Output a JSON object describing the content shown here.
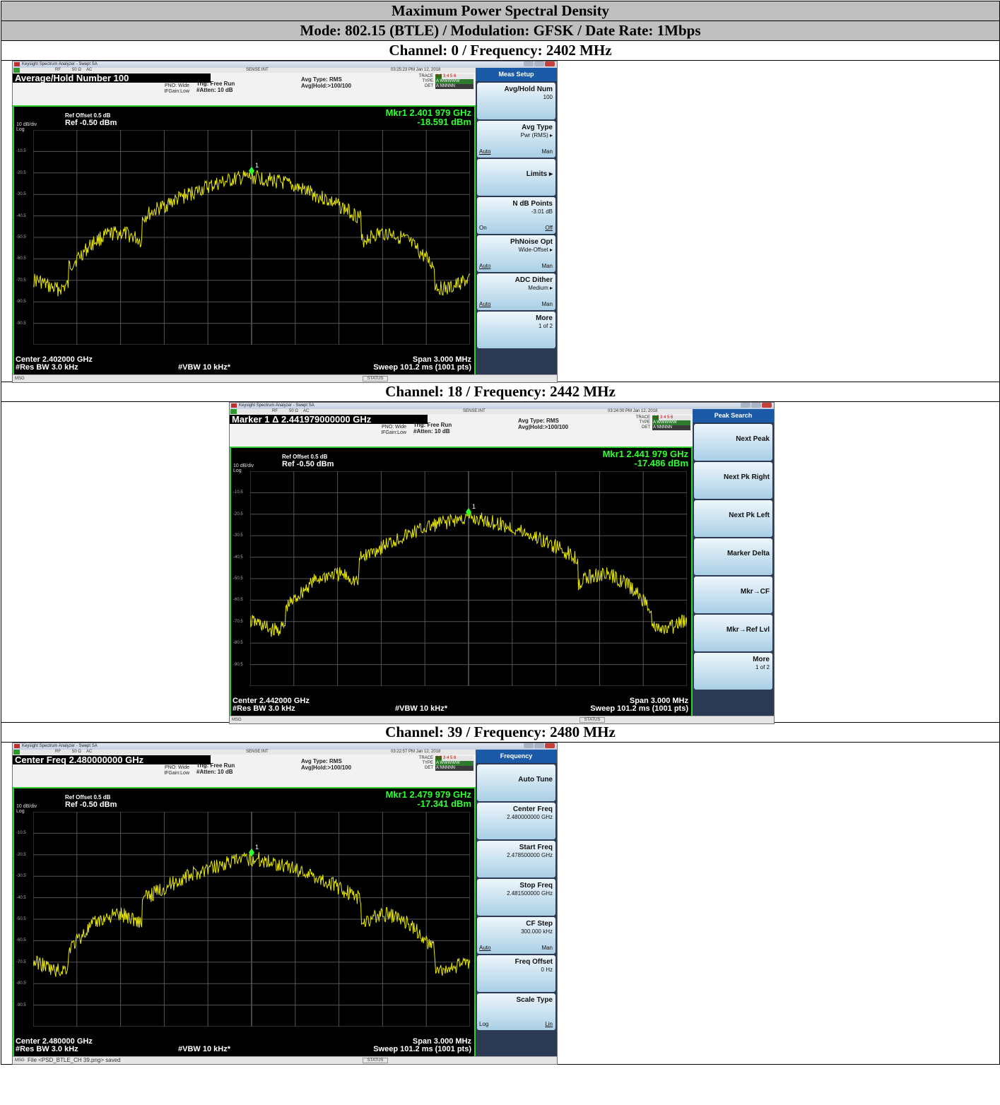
{
  "table": {
    "title": "Maximum Power Spectral Density",
    "mode": "Mode: 802.15 (BTLE) / Modulation: GFSK / Date Rate: 1Mbps"
  },
  "common": {
    "app_title": "Keysight Spectrum Analyzer - Swept SA",
    "rf": "RF",
    "ohm": "50 Ω",
    "ac": "AC",
    "sense": "SENSE:INT",
    "pno": "PNO: Wide",
    "ifgain": "IFGain:Low",
    "trig": "Trig: Free Run",
    "atten": "#Atten: 10 dB",
    "avg_type": "Avg Type: RMS",
    "avg_hold": "Avg|Hold:>100/100",
    "trace_lbl": "TRACE",
    "type_lbl": "TYPE",
    "det_lbl": "DET",
    "trace_num": "1 2 3 4 5 6",
    "type_val": "A WWWWW",
    "det_val": "A NNNNN",
    "ref_offset": "Ref Offset 0.5 dB",
    "ref_level": "Ref -0.50 dBm",
    "db_div": "10 dB/div",
    "log": "Log",
    "y_ticks": [
      "-10.5",
      "-20.5",
      "-30.5",
      "-40.5",
      "-50.5",
      "-60.5",
      "-70.5",
      "-80.5",
      "-90.5"
    ],
    "res_bw": "#Res BW 3.0 kHz",
    "vbw": "#VBW 10 kHz*",
    "span": "Span 3.000 MHz",
    "sweep": "Sweep  101.2 ms (1001 pts)",
    "msg": "MSG",
    "status": "STATUS",
    "marker_label": "1"
  },
  "shots": [
    {
      "channel": "Channel: 0 / Frequency: 2402 MHz",
      "time": "03:25:23 PM Jan 12, 2018",
      "banner": "Average/Hold Number 100",
      "mkr_freq": "Mkr1 2.401 979 GHz",
      "mkr_amp": "-18.591 dBm",
      "center": "Center 2.402000 GHz",
      "msg_text": "",
      "menu_title": "Meas Setup",
      "softkeys": [
        {
          "label": "Avg/Hold Num",
          "sub": "100",
          "left": "",
          "right": ""
        },
        {
          "label": "Avg Type",
          "sub": "Pwr (RMS) ▸",
          "left": "Auto",
          "right": "Man"
        },
        {
          "label": "Limits ▸",
          "sub": "",
          "left": "",
          "right": ""
        },
        {
          "label": "N dB Points",
          "sub": "-3.01 dB",
          "left": "On",
          "right": "Off"
        },
        {
          "label": "PhNoise Opt",
          "sub": "Wide-Offset ▸",
          "left": "Auto",
          "right": "Man"
        },
        {
          "label": "ADC Dither",
          "sub": "Medium ▸",
          "left": "Auto",
          "right": "Man"
        },
        {
          "label": "More",
          "sub": "1 of 2",
          "left": "",
          "right": ""
        }
      ]
    },
    {
      "channel": "Channel: 18 / Frequency: 2442 MHz",
      "time": "03:24:00 PM Jan 12, 2018",
      "banner": "Marker 1 Δ 2.441979000000 GHz",
      "mkr_freq": "Mkr1 2.441 979 GHz",
      "mkr_amp": "-17.486 dBm",
      "center": "Center 2.442000 GHz",
      "msg_text": "",
      "menu_title": "Peak Search",
      "softkeys": [
        {
          "label": "Next Peak",
          "sub": "",
          "left": "",
          "right": ""
        },
        {
          "label": "Next Pk Right",
          "sub": "",
          "left": "",
          "right": ""
        },
        {
          "label": "Next Pk Left",
          "sub": "",
          "left": "",
          "right": ""
        },
        {
          "label": "Marker Delta",
          "sub": "",
          "left": "",
          "right": ""
        },
        {
          "label": "Mkr→CF",
          "sub": "",
          "left": "",
          "right": ""
        },
        {
          "label": "Mkr→Ref Lvl",
          "sub": "",
          "left": "",
          "right": ""
        },
        {
          "label": "More",
          "sub": "1 of 2",
          "left": "",
          "right": ""
        }
      ]
    },
    {
      "channel": "Channel: 39 / Frequency: 2480 MHz",
      "time": "03:22:57 PM Jan 12, 2018",
      "banner": "Center Freq 2.480000000 GHz",
      "mkr_freq": "Mkr1 2.479 979 GHz",
      "mkr_amp": "-17.341 dBm",
      "center": "Center 2.480000 GHz",
      "msg_text": "File <PSD_BTLE_CH 39.png> saved",
      "menu_title": "Frequency",
      "softkeys": [
        {
          "label": "Auto Tune",
          "sub": "",
          "left": "",
          "right": ""
        },
        {
          "label": "Center Freq",
          "sub": "2.480000000 GHz",
          "left": "",
          "right": ""
        },
        {
          "label": "Start Freq",
          "sub": "2.478500000 GHz",
          "left": "",
          "right": ""
        },
        {
          "label": "Stop Freq",
          "sub": "2.481500000 GHz",
          "left": "",
          "right": ""
        },
        {
          "label": "CF Step",
          "sub": "300.000 kHz",
          "left": "Auto",
          "right": "Man"
        },
        {
          "label": "Freq Offset",
          "sub": "0 Hz",
          "left": "",
          "right": ""
        },
        {
          "label": "Scale Type",
          "sub": "",
          "left": "Log",
          "right": "Lin"
        }
      ]
    }
  ],
  "colors": {
    "header_bg": "#bfbfbf",
    "trace": "#e8e800",
    "marker": "#30ff30",
    "plot_border": "#2fd02f",
    "softkey_grad_top": "#eef6fb",
    "softkey_grad_bottom": "#a9cfe6",
    "menu_title_bg": "#1a5aa6"
  }
}
